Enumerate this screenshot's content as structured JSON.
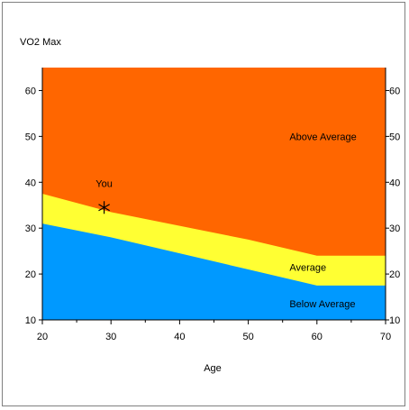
{
  "chart_data": {
    "type": "area",
    "title": "VO2 Max",
    "xlabel": "Age",
    "ylabel": "",
    "xlim": [
      20,
      70
    ],
    "ylim": [
      10,
      65
    ],
    "x_ticks": [
      20,
      30,
      40,
      50,
      60,
      70
    ],
    "y_ticks": [
      10,
      20,
      30,
      40,
      50,
      60
    ],
    "grid": false,
    "bands": [
      {
        "name": "Below Average",
        "color": "#0099FF",
        "x": [
          20,
          30,
          40,
          50,
          60,
          70
        ],
        "upper": [
          31,
          28,
          24.5,
          21,
          17.5,
          17.5
        ]
      },
      {
        "name": "Average",
        "color": "#FFFF33",
        "x": [
          20,
          30,
          40,
          50,
          60,
          70
        ],
        "upper": [
          37.5,
          33.5,
          30.5,
          27.5,
          24,
          24
        ]
      },
      {
        "name": "Above Average",
        "color": "#FF6600",
        "x": [
          20,
          30,
          40,
          50,
          60,
          70
        ],
        "upper": [
          65,
          65,
          65,
          65,
          65,
          65
        ]
      }
    ],
    "marker": {
      "label": "You",
      "x": 29,
      "y": 34.5,
      "symbol": "asterisk"
    },
    "annotations": [
      {
        "text": "Above Average",
        "x": 56,
        "y": 50
      },
      {
        "text": "Average",
        "x": 56,
        "y": 21.5
      },
      {
        "text": "Below Average",
        "x": 56,
        "y": 13.5
      }
    ]
  }
}
